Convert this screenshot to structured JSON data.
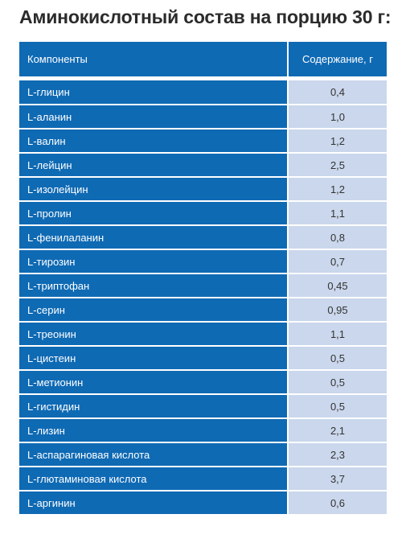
{
  "title": "Аминокислотный состав на порцию 30 г:",
  "table": {
    "headers": [
      "Компоненты",
      "Содержание, г"
    ],
    "rows": [
      {
        "name": "L-глицин",
        "value": "0,4"
      },
      {
        "name": "L-аланин",
        "value": "1,0"
      },
      {
        "name": "L-валин",
        "value": "1,2"
      },
      {
        "name": "L-лейцин",
        "value": "2,5"
      },
      {
        "name": "L-изолейцин",
        "value": "1,2"
      },
      {
        "name": "L-пролин",
        "value": "1,1"
      },
      {
        "name": "L-фенилаланин",
        "value": "0,8"
      },
      {
        "name": "L-тирозин",
        "value": "0,7"
      },
      {
        "name": "L-триптофан",
        "value": "0,45"
      },
      {
        "name": "L-серин",
        "value": "0,95"
      },
      {
        "name": "L-треонин",
        "value": "1,1"
      },
      {
        "name": "L-цистеин",
        "value": "0,5"
      },
      {
        "name": "L-метионин",
        "value": "0,5"
      },
      {
        "name": "L-гистидин",
        "value": "0,5"
      },
      {
        "name": "L-лизин",
        "value": "2,1"
      },
      {
        "name": "L-аспарагиновая кислота",
        "value": "2,3"
      },
      {
        "name": "L-глютаминовая кислота",
        "value": "3,7"
      },
      {
        "name": "L-аргинин",
        "value": "0,6"
      }
    ]
  },
  "colors": {
    "header_bg": "#0f6ab4",
    "value_bg": "#cad7ec",
    "title_text": "#2b2b2b"
  }
}
